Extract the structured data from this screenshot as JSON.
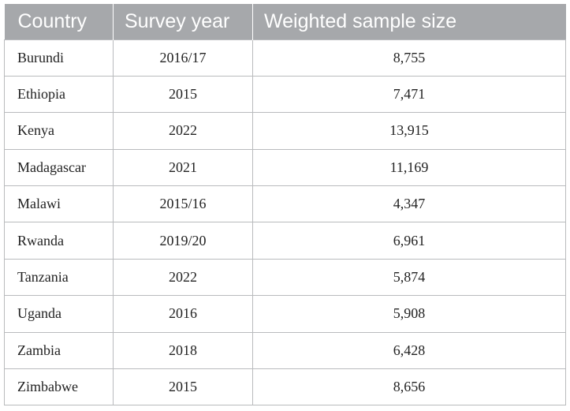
{
  "table": {
    "headers": [
      "Country",
      "Survey year",
      "Weighted sample size"
    ],
    "rows": [
      [
        "Burundi",
        "2016/17",
        "8,755"
      ],
      [
        "Ethiopia",
        "2015",
        "7,471"
      ],
      [
        "Kenya",
        "2022",
        "13,915"
      ],
      [
        "Madagascar",
        "2021",
        "11,169"
      ],
      [
        "Malawi",
        "2015/16",
        "4,347"
      ],
      [
        "Rwanda",
        "2019/20",
        "6,961"
      ],
      [
        "Tanzania",
        "2022",
        "5,874"
      ],
      [
        "Uganda",
        "2016",
        "5,908"
      ],
      [
        "Zambia",
        "2018",
        "6,428"
      ],
      [
        "Zimbabwe",
        "2015",
        "8,656"
      ]
    ]
  },
  "colors": {
    "header_bg": "#a6a8ab",
    "header_text": "#ffffff",
    "grid": "#b9bbbd"
  }
}
